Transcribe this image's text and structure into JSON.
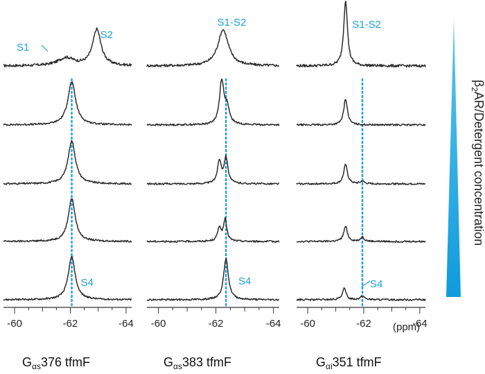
{
  "chart_data": {
    "type": "line",
    "x_unit": "(ppm)",
    "x_ticks": [
      "-60",
      "-62",
      "-64"
    ],
    "gradient_label": {
      "prefix": "β",
      "sub": "2",
      "rest": "AR/Detergent concentration"
    },
    "accent_color": "#1ea0dc",
    "trace_color": "#2b2b2b",
    "panels": [
      {
        "title_prefix": "G",
        "title_sub": "αs",
        "title_rest": "376 tfmF",
        "xlim": [
          -59.6,
          -64.2
        ],
        "ref_ppm": -62.05,
        "ref_from_row": 1,
        "series": [
          {
            "name": "row-1",
            "baseline": 0,
            "peaks": [
              {
                "ppm": -61.85,
                "height": 0.12,
                "width": 0.35
              },
              {
                "ppm": -62.95,
                "height": 0.55,
                "width": 0.18
              }
            ]
          },
          {
            "name": "row-2",
            "baseline": 0,
            "peaks": [
              {
                "ppm": -62.05,
                "height": 1.0,
                "width": 0.17
              }
            ]
          },
          {
            "name": "row-3",
            "baseline": 0,
            "peaks": [
              {
                "ppm": -62.05,
                "height": 1.0,
                "width": 0.16
              }
            ]
          },
          {
            "name": "row-4",
            "baseline": 0,
            "peaks": [
              {
                "ppm": -62.05,
                "height": 1.0,
                "width": 0.15
              }
            ]
          },
          {
            "name": "row-5",
            "baseline": 0,
            "peaks": [
              {
                "ppm": -62.05,
                "height": 1.0,
                "width": 0.15
              }
            ]
          }
        ],
        "annotations": [
          {
            "text": "S1",
            "row": 0,
            "ppm": -60.3,
            "dy": -22
          },
          {
            "text": "S2",
            "row": 0,
            "ppm": -63.3,
            "dy": -40
          },
          {
            "text": "S4",
            "row": 4,
            "ppm": -62.6,
            "dy": -20
          }
        ]
      },
      {
        "title_prefix": "G",
        "title_sub": "αs",
        "title_rest": "383 tfmF",
        "xlim": [
          -59.6,
          -64.2
        ],
        "ref_ppm": -62.35,
        "ref_from_row": 1,
        "series": [
          {
            "name": "row-1",
            "baseline": 0,
            "peaks": [
              {
                "ppm": -62.25,
                "height": 0.55,
                "width": 0.22
              }
            ]
          },
          {
            "name": "row-2",
            "baseline": 0,
            "peaks": [
              {
                "ppm": -62.2,
                "height": 1.0,
                "width": 0.09
              },
              {
                "ppm": -62.38,
                "height": 0.38,
                "width": 0.1
              }
            ]
          },
          {
            "name": "row-3",
            "baseline": 0,
            "peaks": [
              {
                "ppm": -62.12,
                "height": 0.52,
                "width": 0.08
              },
              {
                "ppm": -62.35,
                "height": 0.6,
                "width": 0.08
              }
            ]
          },
          {
            "name": "row-4",
            "baseline": 0,
            "peaks": [
              {
                "ppm": -62.12,
                "height": 0.32,
                "width": 0.07
              },
              {
                "ppm": -62.32,
                "height": 0.5,
                "width": 0.07
              }
            ]
          },
          {
            "name": "row-5",
            "baseline": 0,
            "peaks": [
              {
                "ppm": -62.35,
                "height": 0.95,
                "width": 0.1
              }
            ]
          }
        ],
        "annotations": [
          {
            "text": "S1-S2",
            "row": 0,
            "ppm": -62.55,
            "dy": -58
          },
          {
            "text": "S4",
            "row": 4,
            "ppm": -63.0,
            "dy": -22
          }
        ]
      },
      {
        "title_prefix": "G",
        "title_sub": "αi",
        "title_rest": "351 tfmF",
        "xlim": [
          -59.6,
          -64.2
        ],
        "ref_ppm": -61.95,
        "ref_from_row": 1,
        "series": [
          {
            "name": "row-1",
            "baseline": 0,
            "peaks": [
              {
                "ppm": -61.35,
                "height": 1.0,
                "width": 0.08
              }
            ]
          },
          {
            "name": "row-2",
            "baseline": 0,
            "peaks": [
              {
                "ppm": -61.35,
                "height": 0.6,
                "width": 0.08
              }
            ]
          },
          {
            "name": "row-3",
            "baseline": 0,
            "peaks": [
              {
                "ppm": -61.35,
                "height": 0.45,
                "width": 0.08
              },
              {
                "ppm": -61.95,
                "height": 0.06,
                "width": 0.08
              }
            ]
          },
          {
            "name": "row-4",
            "baseline": 0,
            "peaks": [
              {
                "ppm": -61.35,
                "height": 0.35,
                "width": 0.08
              },
              {
                "ppm": -61.95,
                "height": 0.1,
                "width": 0.08
              }
            ]
          },
          {
            "name": "row-5",
            "baseline": 0,
            "peaks": [
              {
                "ppm": -61.3,
                "height": 0.26,
                "width": 0.08
              },
              {
                "ppm": -61.95,
                "height": 0.08,
                "width": 0.1
              }
            ]
          }
        ],
        "annotations": [
          {
            "text": "S1-S2",
            "row": 0,
            "ppm": -62.1,
            "dy": -55
          },
          {
            "text": "S4",
            "row": 4,
            "ppm": -62.45,
            "dy": -18
          }
        ]
      }
    ]
  }
}
